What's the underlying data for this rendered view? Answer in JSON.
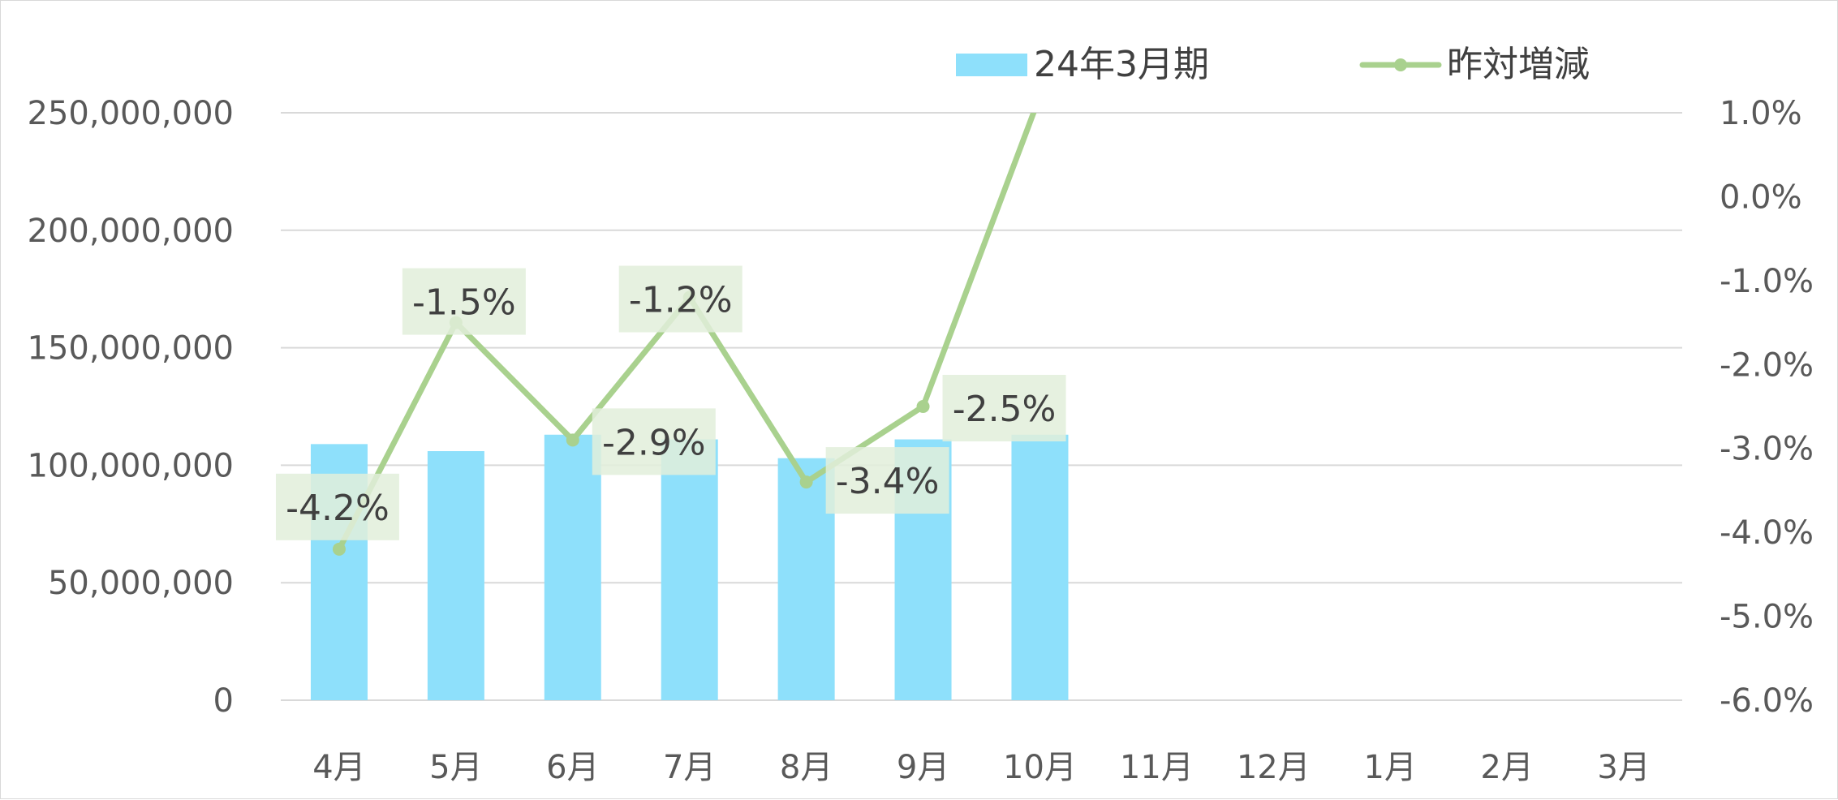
{
  "chart_data": {
    "type": "bar",
    "categories": [
      "4月",
      "5月",
      "6月",
      "7月",
      "8月",
      "9月",
      "10月",
      "11月",
      "12月",
      "1月",
      "2月",
      "3月"
    ],
    "series": [
      {
        "name": "24年3月期",
        "type": "bar",
        "axis": "left",
        "color": "#8ee0fb",
        "values": [
          109000000,
          106000000,
          113000000,
          111000000,
          103000000,
          111000000,
          113000000,
          null,
          null,
          null,
          null,
          null
        ]
      },
      {
        "name": "昨対増減",
        "type": "line",
        "axis": "right",
        "color": "#a9d18e",
        "values": [
          -4.2,
          -1.5,
          -2.9,
          -1.2,
          -3.4,
          -2.5,
          1.2,
          null,
          null,
          null,
          null,
          null
        ],
        "data_labels": [
          "-4.2%",
          "-1.5%",
          "-2.9%",
          "-1.2%",
          "-3.4%",
          "-2.5%",
          null,
          null,
          null,
          null,
          null,
          null
        ]
      }
    ],
    "y_left": {
      "lim": [
        0,
        250000000
      ],
      "ticks": [
        0,
        50000000,
        100000000,
        150000000,
        200000000,
        250000000
      ],
      "tick_labels": [
        "0",
        "50,000,000",
        "100,000,000",
        "150,000,000",
        "200,000,000",
        "250,000,000"
      ]
    },
    "y_right": {
      "lim": [
        -6.0,
        1.0
      ],
      "ticks": [
        -6,
        -5,
        -4,
        -3,
        -2,
        -1,
        0,
        1
      ],
      "tick_labels": [
        "-6.0%",
        "-5.0%",
        "-4.0%",
        "-3.0%",
        "-2.0%",
        "-1.0%",
        "0.0%",
        "1.0%"
      ]
    },
    "grid": true,
    "legend_position": "top-right",
    "colors": {
      "gridline": "#d9d9d9",
      "label_box": "#e2efda",
      "text": "#595959"
    }
  }
}
